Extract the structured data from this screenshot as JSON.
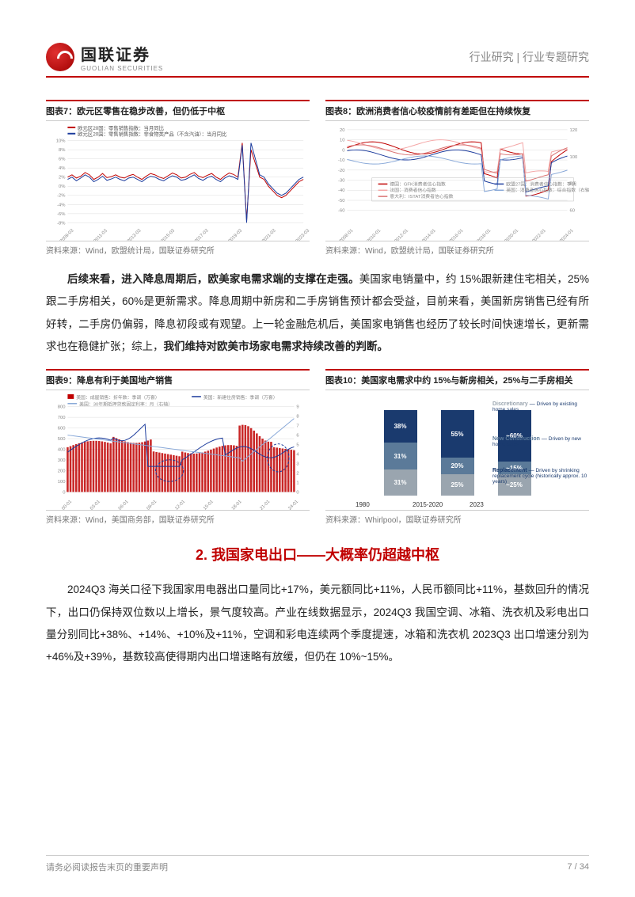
{
  "header": {
    "logo_cn": "国联证券",
    "logo_en": "GUOLIAN SECURITIES",
    "breadcrumb": "行业研究 | 行业专题研究"
  },
  "chart7": {
    "title": "图表7：欧元区零售在稳步改善，但仍低于中枢",
    "source": "资料来源：Wind，欧盟统计局，国联证券研究所",
    "legend": [
      "欧元区20国：零售销售指数：当月同比",
      "欧元区20国：零售销售指数：非食物类产品（不含汽油）：当月同比"
    ],
    "ylim": [
      -8,
      10
    ],
    "ytick_step": 2,
    "colors": [
      "#c00000",
      "#1a3a9c"
    ],
    "background_color": "#ffffff",
    "grid_color": "#dddddd",
    "series1": [
      2,
      2.5,
      1.8,
      2.2,
      3,
      2.5,
      1.5,
      2,
      2.8,
      1.9,
      2.1,
      2.5,
      2,
      1.8,
      2.3,
      2.6,
      2,
      1.5,
      2.2,
      2.8,
      2.5,
      2,
      1.7,
      2.3,
      2.9,
      2.5,
      1.8,
      2,
      2.6,
      3,
      2.2,
      1.9,
      2.4,
      2.8,
      2,
      1.5,
      2.3,
      2.9,
      2.6,
      2,
      9.5,
      -7.5,
      8,
      5,
      2,
      1.5,
      0,
      -1,
      -2,
      -2.5,
      -2,
      -1,
      0,
      1,
      1.5
    ],
    "series2": [
      1.5,
      2,
      1.2,
      1.8,
      2.5,
      2,
      1,
      1.5,
      2.2,
      1.3,
      1.6,
      2,
      1.5,
      1.2,
      1.8,
      2,
      1.5,
      1,
      1.7,
      2.2,
      2,
      1.5,
      1.2,
      1.8,
      2.3,
      2,
      1.3,
      1.5,
      2,
      2.5,
      1.7,
      1.3,
      1.9,
      2.2,
      1.5,
      1,
      1.8,
      2.3,
      2,
      1.5,
      9,
      -8,
      9.5,
      6,
      2.5,
      2,
      0.5,
      -0.5,
      -1.5,
      -2,
      -1.5,
      -0.5,
      0.5,
      1.5,
      2
    ]
  },
  "chart8": {
    "title": "图表8：欧洲消费者信心较疫情前有差距但在持续恢复",
    "source": "资料来源：Wind，欧盟统计局，国联证券研究所",
    "legend": [
      "德国：GFK消费者信心指数",
      "欧盟27国：消费者信心指数：季调",
      "法国：消费者信心指数",
      "英国：消费者信心指数：综合指数（右轴）",
      "意大利：ISTAT消费者信心指数"
    ],
    "ylim_left": [
      -60,
      20
    ],
    "ylim_right": [
      60,
      120
    ],
    "colors": [
      "#c00000",
      "#1a3a9c",
      "#f4a6a6",
      "#88a8d8",
      "#d97070"
    ],
    "background_color": "#ffffff",
    "grid_color": "#dddddd"
  },
  "para1": {
    "t1": "后续来看，进入降息周期后，欧美家电需求端的支撑在走强。",
    "t2": "美国家电销量中，约 15%跟新建住宅相关，25%跟二手房相关，60%是更新需求。降息周期中新房和二手房销售预计都会受益，目前来看，美国新房销售已经有所好转，二手房仍偏弱，降息初段或有观望。上一轮金融危机后，美国家电销售也经历了较长时间快速增长，更新需求也在稳健扩张；综上，",
    "t3": "我们维持对欧美市场家电需求持续改善的判断。"
  },
  "chart9": {
    "title": "图表9：降息有利于美国地产销售",
    "source": "资料来源：Wind，美国商务部，国联证券研究所",
    "legend": [
      "美国：成屋销售：折年数：季调（万套）",
      "美国：新建住房销售：季调（万套）",
      "美国：30年期抵押贷款固定利率：月（右轴）"
    ],
    "colors": [
      "#c00000",
      "#1a3a9c",
      "#88a8d8"
    ],
    "ylim_left": [
      0,
      800
    ],
    "ylim_right": [
      0,
      9
    ],
    "background_color": "#ffffff",
    "grid_color": "#dddddd"
  },
  "chart10": {
    "title": "图表10：美国家电需求中约 15%与新房相关，25%与二手房相关",
    "source": "资料来源：Whirlpool，国联证券研究所",
    "categories": [
      "1980",
      "2015-2020",
      "2023"
    ],
    "segments": [
      "Discretionary",
      "New Construction",
      "Replacement"
    ],
    "seg_colors": [
      "#9aa5af",
      "#5b7a99",
      "#1a3a6e"
    ],
    "values": [
      [
        31,
        31,
        38
      ],
      [
        25,
        20,
        55
      ],
      [
        25,
        15,
        60
      ]
    ],
    "annotations": [
      "Driven by existing home sales",
      "Driven by new home sales",
      "Driven by shrinking replacement cycle (historically approx. 10 years)"
    ],
    "annot_lead": [
      "~25%",
      "~15%",
      "~60%"
    ],
    "background_color": "#ffffff"
  },
  "section2_heading": "2. 我国家电出口——大概率仍超越中枢",
  "para2": "2024Q3 海关口径下我国家用电器出口量同比+17%，美元额同比+11%，人民币额同比+11%，基数回升的情况下，出口仍保持双位数以上增长，景气度较高。产业在线数据显示，2024Q3 我国空调、冰箱、洗衣机及彩电出口量分别同比+38%、+14%、+10%及+11%，空调和彩电连续两个季度提速，冰箱和洗衣机 2023Q3 出口增速分别为+46%及+39%，基数较高使得期内出口增速略有放缓，但仍在 10%~15%。",
  "footer": {
    "disclaimer": "请务必阅读报告末页的重要声明",
    "page": "7 / 34"
  }
}
